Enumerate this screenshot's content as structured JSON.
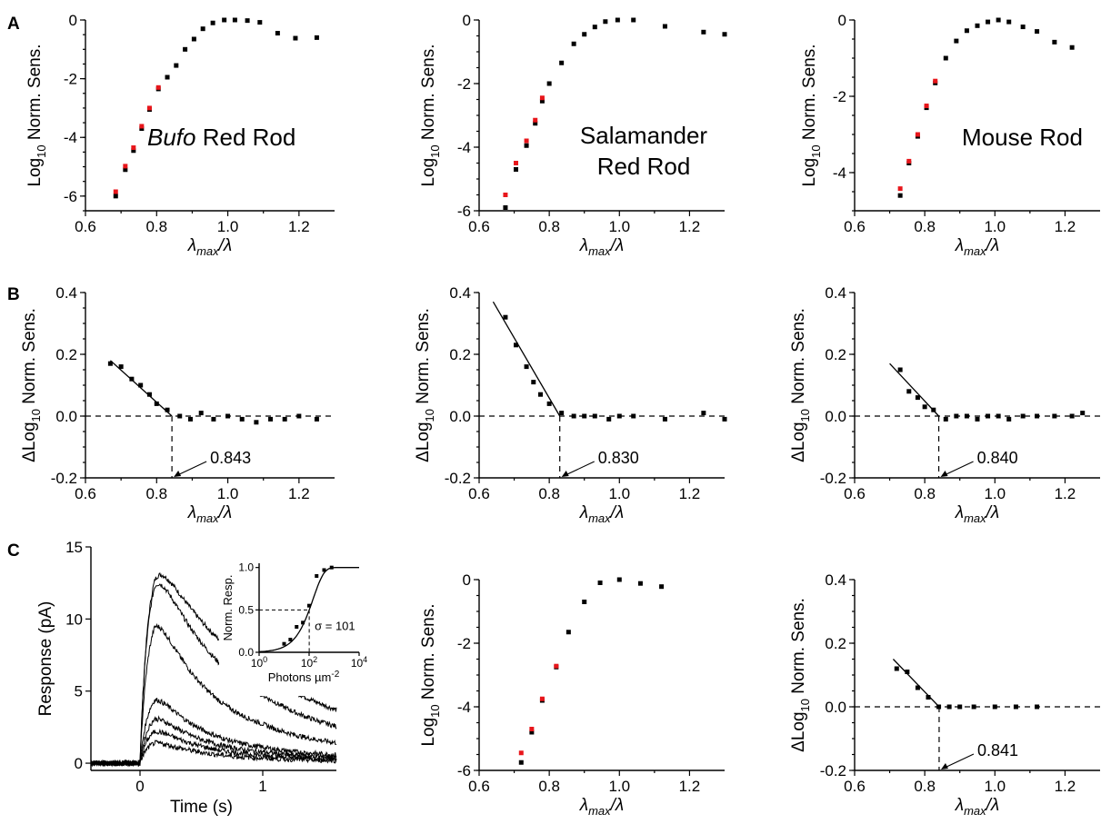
{
  "colors": {
    "black_point": "#000000",
    "red_point": "#e8161b"
  },
  "panel_letters": [
    "A",
    "B",
    "C"
  ],
  "chart_data": [
    {
      "id": "A1",
      "type": "scatter",
      "annotation": [
        "Bufo",
        "Red Rod"
      ],
      "xlabel": "λmax/λ",
      "ylabel": "Log10 Norm. Sens.",
      "xlim": [
        0.6,
        1.3
      ],
      "ylim": [
        -6.5,
        0
      ],
      "xticks": [
        0.6,
        0.8,
        1.0,
        1.2
      ],
      "yticks": [
        -6,
        -4,
        -2,
        0
      ],
      "series": [
        {
          "color": "black",
          "x": [
            0.685,
            0.712,
            0.735,
            0.758,
            0.78,
            0.805,
            0.83,
            0.855,
            0.88,
            0.905,
            0.93,
            0.958,
            0.99,
            1.02,
            1.055,
            1.09,
            1.14,
            1.19,
            1.25
          ],
          "y": [
            -6.0,
            -5.1,
            -4.45,
            -3.7,
            -3.05,
            -2.35,
            -1.95,
            -1.55,
            -1.0,
            -0.65,
            -0.3,
            -0.1,
            0.0,
            0.0,
            -0.02,
            -0.08,
            -0.45,
            -0.62,
            -0.6
          ]
        },
        {
          "color": "red",
          "x": [
            0.685,
            0.712,
            0.735,
            0.758,
            0.78,
            0.805
          ],
          "y": [
            -5.85,
            -4.98,
            -4.35,
            -3.62,
            -3.0,
            -2.3
          ]
        }
      ]
    },
    {
      "id": "A2",
      "type": "scatter",
      "annotation": [
        "Salamander",
        "Red Rod"
      ],
      "xlabel": "λmax/λ",
      "ylabel": "Log10 Norm. Sens.",
      "xlim": [
        0.6,
        1.3
      ],
      "ylim": [
        -6,
        0
      ],
      "xticks": [
        0.6,
        0.8,
        1.0,
        1.2
      ],
      "yticks": [
        -6,
        -4,
        -2,
        0
      ],
      "series": [
        {
          "color": "black",
          "x": [
            0.675,
            0.705,
            0.735,
            0.76,
            0.78,
            0.8,
            0.835,
            0.87,
            0.9,
            0.93,
            0.96,
            0.995,
            1.04,
            1.13,
            1.24,
            1.3
          ],
          "y": [
            -5.9,
            -4.7,
            -3.95,
            -3.25,
            -2.55,
            -2.0,
            -1.35,
            -0.75,
            -0.45,
            -0.22,
            -0.05,
            0.0,
            0.0,
            -0.2,
            -0.38,
            -0.45
          ]
        },
        {
          "color": "red",
          "x": [
            0.675,
            0.705,
            0.735,
            0.76,
            0.78
          ],
          "y": [
            -5.5,
            -4.5,
            -3.8,
            -3.15,
            -2.45
          ]
        }
      ]
    },
    {
      "id": "A3",
      "type": "scatter",
      "annotation": [
        "Mouse Rod"
      ],
      "xlabel": "λmax/λ",
      "ylabel": "Log10 Norm. Sens.",
      "xlim": [
        0.6,
        1.3
      ],
      "ylim": [
        -5,
        0
      ],
      "xticks": [
        0.6,
        0.8,
        1.0,
        1.2
      ],
      "yticks": [
        -4,
        -2,
        0
      ],
      "series": [
        {
          "color": "black",
          "x": [
            0.73,
            0.755,
            0.78,
            0.805,
            0.83,
            0.86,
            0.89,
            0.92,
            0.95,
            0.98,
            1.01,
            1.04,
            1.08,
            1.12,
            1.17,
            1.22
          ],
          "y": [
            -4.6,
            -3.75,
            -3.05,
            -2.3,
            -1.65,
            -1.0,
            -0.55,
            -0.28,
            -0.15,
            -0.05,
            0.0,
            -0.05,
            -0.18,
            -0.3,
            -0.58,
            -0.72
          ]
        },
        {
          "color": "red",
          "x": [
            0.73,
            0.755,
            0.78,
            0.805,
            0.83
          ],
          "y": [
            -4.42,
            -3.7,
            -3.0,
            -2.25,
            -1.6
          ]
        }
      ]
    },
    {
      "id": "B1",
      "type": "scatter",
      "annotation": [
        "0.843"
      ],
      "xlabel": "λmax/λ",
      "ylabel": "ΔLog10 Norm. Sens.",
      "xlim": [
        0.6,
        1.3
      ],
      "ylim": [
        -0.2,
        0.4
      ],
      "xticks": [
        0.6,
        0.8,
        1.0,
        1.2
      ],
      "yticks": [
        -0.2,
        0.0,
        0.2,
        0.4
      ],
      "ytick_labels": [
        "-0.2",
        "0.0",
        "0.2",
        "0.4"
      ],
      "breakpoint": 0.843,
      "fit_line": {
        "x": [
          0.67,
          0.843
        ],
        "y": [
          0.18,
          0.0
        ]
      },
      "series": [
        {
          "color": "black",
          "x": [
            0.67,
            0.7,
            0.73,
            0.755,
            0.78,
            0.8,
            0.83,
            0.865,
            0.895,
            0.925,
            0.96,
            1.0,
            1.04,
            1.08,
            1.12,
            1.16,
            1.2,
            1.25
          ],
          "y": [
            0.17,
            0.16,
            0.12,
            0.1,
            0.07,
            0.04,
            0.02,
            0.0,
            -0.01,
            0.01,
            -0.01,
            0.0,
            -0.01,
            -0.02,
            -0.01,
            -0.01,
            0.0,
            -0.01
          ]
        }
      ]
    },
    {
      "id": "B2",
      "type": "scatter",
      "annotation": [
        "0.830"
      ],
      "xlabel": "λmax/λ",
      "ylabel": "ΔLog10 Norm. Sens.",
      "xlim": [
        0.6,
        1.3
      ],
      "ylim": [
        -0.2,
        0.4
      ],
      "xticks": [
        0.6,
        0.8,
        1.0,
        1.2
      ],
      "yticks": [
        -0.2,
        0.0,
        0.2,
        0.4
      ],
      "ytick_labels": [
        "-0.2",
        "0.0",
        "0.2",
        "0.4"
      ],
      "breakpoint": 0.83,
      "fit_line": {
        "x": [
          0.64,
          0.83
        ],
        "y": [
          0.37,
          0.0
        ]
      },
      "series": [
        {
          "color": "black",
          "x": [
            0.675,
            0.705,
            0.735,
            0.755,
            0.775,
            0.8,
            0.835,
            0.87,
            0.9,
            0.93,
            0.97,
            1.0,
            1.04,
            1.13,
            1.24,
            1.3
          ],
          "y": [
            0.32,
            0.23,
            0.16,
            0.11,
            0.07,
            0.04,
            0.01,
            0.0,
            0.0,
            0.0,
            -0.01,
            0.0,
            0.0,
            -0.01,
            0.01,
            -0.01
          ]
        }
      ]
    },
    {
      "id": "B3",
      "type": "scatter",
      "annotation": [
        "0.840"
      ],
      "xlabel": "λmax/λ",
      "ylabel": "ΔLog10 Norm. Sens.",
      "xlim": [
        0.6,
        1.3
      ],
      "ylim": [
        -0.2,
        0.4
      ],
      "xticks": [
        0.6,
        0.8,
        1.0,
        1.2
      ],
      "yticks": [
        -0.2,
        0.0,
        0.2,
        0.4
      ],
      "ytick_labels": [
        "-0.2",
        "0.0",
        "0.2",
        "0.4"
      ],
      "breakpoint": 0.84,
      "fit_line": {
        "x": [
          0.7,
          0.84
        ],
        "y": [
          0.17,
          0.0
        ]
      },
      "series": [
        {
          "color": "black",
          "x": [
            0.73,
            0.755,
            0.78,
            0.8,
            0.825,
            0.86,
            0.89,
            0.92,
            0.95,
            0.98,
            1.01,
            1.04,
            1.08,
            1.12,
            1.17,
            1.22,
            1.25
          ],
          "y": [
            0.15,
            0.08,
            0.06,
            0.03,
            0.02,
            -0.01,
            0.0,
            0.0,
            -0.01,
            0.0,
            0.0,
            -0.01,
            0.0,
            0.0,
            0.0,
            0.0,
            0.01
          ]
        }
      ]
    },
    {
      "id": "C1",
      "type": "line",
      "xlabel": "Time (s)",
      "ylabel": "Response (pA)",
      "xlim": [
        -0.4,
        1.6
      ],
      "ylim": [
        -0.5,
        15
      ],
      "xticks": [
        0,
        1
      ],
      "yticks": [
        0,
        5,
        10,
        15
      ],
      "series": [
        {
          "peak": 14.5,
          "decay": 0.85
        },
        {
          "peak": 14.0,
          "decay": 0.65
        },
        {
          "peak": 10.8,
          "decay": 0.5
        },
        {
          "peak": 5.0,
          "decay": 0.45
        },
        {
          "peak": 3.5,
          "decay": 0.45
        },
        {
          "peak": 2.5,
          "decay": 0.45
        },
        {
          "peak": 1.6,
          "decay": 0.45
        }
      ],
      "inset": {
        "xlabel": "Photons µm-2",
        "ylabel": "Norm. Resp.",
        "xlim_log10": [
          0,
          4
        ],
        "ylim": [
          0,
          1.05
        ],
        "xticks_log10": [
          0,
          2,
          4
        ],
        "xtick_labels": [
          "10",
          "10",
          "10"
        ],
        "xtick_exps": [
          "0",
          "2",
          "4"
        ],
        "yticks": [
          0.0,
          0.5,
          1.0
        ],
        "ytick_labels": [
          "0.0",
          "0.5",
          "1.0"
        ],
        "sigma": 101,
        "sigma_label": "σ = 101",
        "points_log10x": [
          1.0,
          1.25,
          1.5,
          1.75,
          2.0,
          2.3,
          2.6,
          2.9
        ],
        "points_y": [
          0.1,
          0.15,
          0.3,
          0.35,
          0.55,
          0.9,
          0.97,
          1.0
        ]
      }
    },
    {
      "id": "C2",
      "type": "scatter",
      "xlabel": "λmax/λ",
      "ylabel": "Log10 Norm. Sens.",
      "xlim": [
        0.6,
        1.3
      ],
      "ylim": [
        -6,
        0
      ],
      "xticks": [
        0.6,
        0.8,
        1.0,
        1.2
      ],
      "yticks": [
        -6,
        -4,
        -2,
        0
      ],
      "series": [
        {
          "color": "black",
          "x": [
            0.72,
            0.75,
            0.78,
            0.82,
            0.855,
            0.9,
            0.945,
            1.0,
            1.06,
            1.12
          ],
          "y": [
            -5.75,
            -4.8,
            -3.8,
            -2.75,
            -1.65,
            -0.7,
            -0.1,
            0.0,
            -0.12,
            -0.22
          ]
        },
        {
          "color": "red",
          "x": [
            0.72,
            0.75,
            0.78,
            0.82
          ],
          "y": [
            -5.45,
            -4.7,
            -3.75,
            -2.72
          ]
        }
      ]
    },
    {
      "id": "C3",
      "type": "scatter",
      "annotation": [
        "0.841"
      ],
      "xlabel": "λmax/λ",
      "ylabel": "ΔLog10 Norm. Sens.",
      "xlim": [
        0.6,
        1.3
      ],
      "ylim": [
        -0.2,
        0.4
      ],
      "xticks": [
        0.6,
        0.8,
        1.0,
        1.2
      ],
      "yticks": [
        -0.2,
        0.0,
        0.2,
        0.4
      ],
      "ytick_labels": [
        "-0.2",
        "0.0",
        "0.2",
        "0.4"
      ],
      "breakpoint": 0.841,
      "fit_line": {
        "x": [
          0.71,
          0.841
        ],
        "y": [
          0.15,
          0.0
        ]
      },
      "series": [
        {
          "color": "black",
          "x": [
            0.72,
            0.75,
            0.78,
            0.81,
            0.84,
            0.87,
            0.9,
            0.94,
            1.0,
            1.06,
            1.12
          ],
          "y": [
            0.12,
            0.11,
            0.06,
            0.03,
            0.0,
            0.0,
            0.0,
            0.0,
            0.0,
            0.0,
            0.0
          ]
        }
      ]
    }
  ]
}
